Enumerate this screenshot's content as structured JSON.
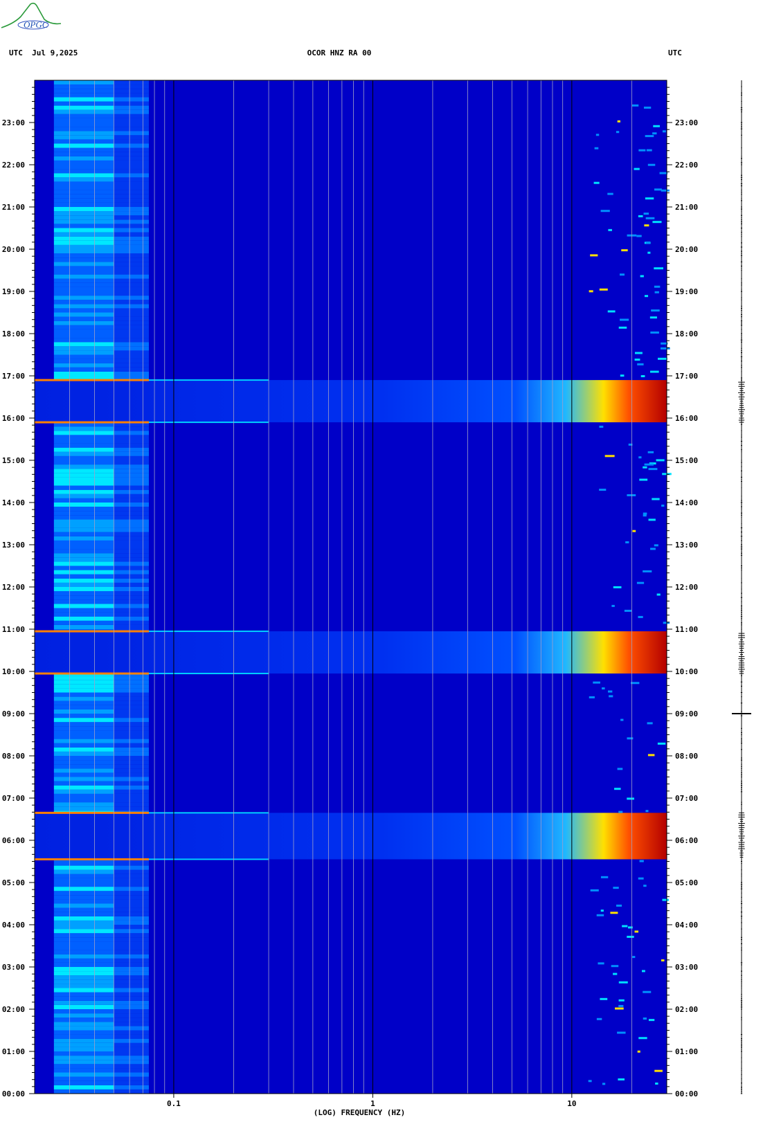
{
  "header": {
    "left": "UTC  Jul 9,2025",
    "center": "OCOR HNZ RA 00",
    "right": "UTC"
  },
  "logo": {
    "text": "OPGC",
    "icon": "volcano-logo-icon"
  },
  "colors": {
    "background": "#0000c8",
    "low": "#0018e0",
    "mid": "#00c8ff",
    "high": "#ffff00",
    "peak": "#b40000",
    "grid_minor": "#a0a0c8",
    "grid_major": "#000000"
  },
  "chart_data": {
    "type": "heatmap",
    "title": "OCOR HNZ RA 00",
    "xlabel": "(LOG) FREQUENCY (HZ)",
    "ylabel": "UTC",
    "x_scale": "log",
    "xlim": [
      0.02,
      30
    ],
    "ylim": [
      0,
      24
    ],
    "x_tick_labels": [
      "0.1",
      "1",
      "10"
    ],
    "x_tick_values": [
      0.1,
      1,
      10
    ],
    "y_tick_labels": [
      "00:00",
      "01:00",
      "02:00",
      "03:00",
      "04:00",
      "05:00",
      "06:00",
      "07:00",
      "08:00",
      "09:00",
      "10:00",
      "11:00",
      "12:00",
      "13:00",
      "14:00",
      "15:00",
      "16:00",
      "17:00",
      "18:00",
      "19:00",
      "20:00",
      "21:00",
      "22:00",
      "23:00"
    ],
    "y_tick_values": [
      0,
      1,
      2,
      3,
      4,
      5,
      6,
      7,
      8,
      9,
      10,
      11,
      12,
      13,
      14,
      15,
      16,
      17,
      18,
      19,
      20,
      21,
      22,
      23
    ],
    "grid": true,
    "energetic_bands": [
      {
        "start_hour": 5.55,
        "end_hour": 6.65,
        "intensity": "high"
      },
      {
        "start_hour": 9.95,
        "end_hour": 10.95,
        "intensity": "high"
      },
      {
        "start_hour": 15.9,
        "end_hour": 16.9,
        "intensity": "high"
      }
    ],
    "seismogram_trace": true
  }
}
